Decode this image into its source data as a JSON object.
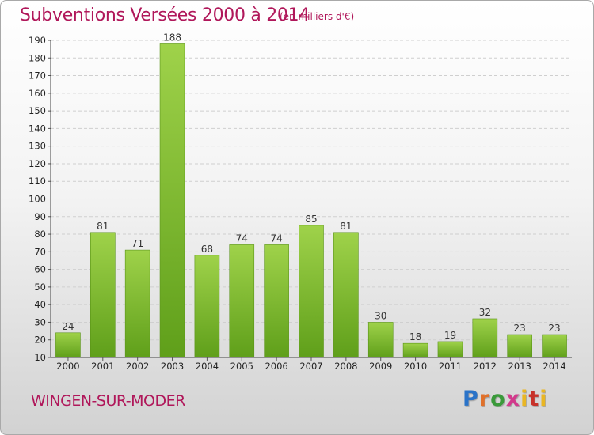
{
  "chart_data": {
    "type": "bar",
    "title": "Subventions Versées 2000 à 2014",
    "subtitle": "(en milliers d'€)",
    "categories": [
      "2000",
      "2001",
      "2002",
      "2003",
      "2004",
      "2005",
      "2006",
      "2007",
      "2008",
      "2009",
      "2010",
      "2011",
      "2012",
      "2013",
      "2014"
    ],
    "values": [
      24,
      81,
      71,
      188,
      68,
      74,
      74,
      85,
      81,
      30,
      18,
      19,
      32,
      23,
      23
    ],
    "ylim": [
      10,
      190
    ],
    "yticks": [
      10,
      20,
      30,
      40,
      50,
      60,
      70,
      80,
      90,
      100,
      110,
      120,
      130,
      140,
      150,
      160,
      170,
      180,
      190
    ],
    "xlabel": "",
    "ylabel": "",
    "grid": true,
    "bar_color": "#7dbf2e"
  },
  "footer": {
    "town": "WINGEN-SUR-MODER",
    "logo": "Proxiti"
  },
  "colors": {
    "title": "#b0175a"
  }
}
